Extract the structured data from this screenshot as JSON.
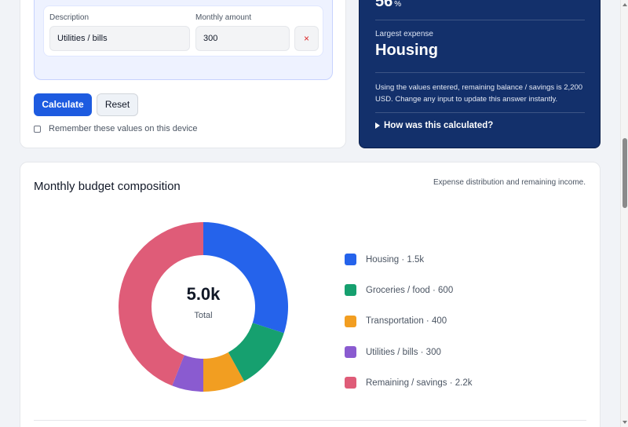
{
  "form": {
    "rows": [
      {
        "description": "",
        "amount": ""
      },
      {
        "description_label": "Description",
        "amount_label": "Monthly amount",
        "description": "Utilities / bills",
        "amount": "300",
        "remove_icon": "×"
      }
    ],
    "calculate_label": "Calculate",
    "reset_label": "Reset",
    "remember_label": "Remember these values on this device"
  },
  "result": {
    "percent_value": "56",
    "percent_unit": "%",
    "largest_label": "Largest expense",
    "largest_value": "Housing",
    "summary": "Using the values entered, remaining balance / savings is 2,200 USD. Change any input to update this answer instantly.",
    "how_label": "How was this calculated?"
  },
  "chart_card": {
    "title": "Monthly budget composition",
    "subtitle": "Expense distribution and remaining income.",
    "center_value": "5.0k",
    "center_label": "Total"
  },
  "chart_data": {
    "type": "pie",
    "title": "Monthly budget composition",
    "series": [
      {
        "name": "Housing",
        "value": 1500,
        "label": "Housing · 1.5k",
        "color": "#2563eb"
      },
      {
        "name": "Groceries / food",
        "value": 600,
        "label": "Groceries / food · 600",
        "color": "#16a06f"
      },
      {
        "name": "Transportation",
        "value": 400,
        "label": "Transportation · 400",
        "color": "#f29e21"
      },
      {
        "name": "Utilities / bills",
        "value": 300,
        "label": "Utilities / bills · 300",
        "color": "#8a5bd0"
      },
      {
        "name": "Remaining / savings",
        "value": 2200,
        "label": "Remaining / savings · 2.2k",
        "color": "#df5c78"
      }
    ],
    "total": 5000,
    "legend": "right"
  },
  "icons": {
    "remove": "close-icon",
    "disclosure": "caret-right-icon"
  }
}
